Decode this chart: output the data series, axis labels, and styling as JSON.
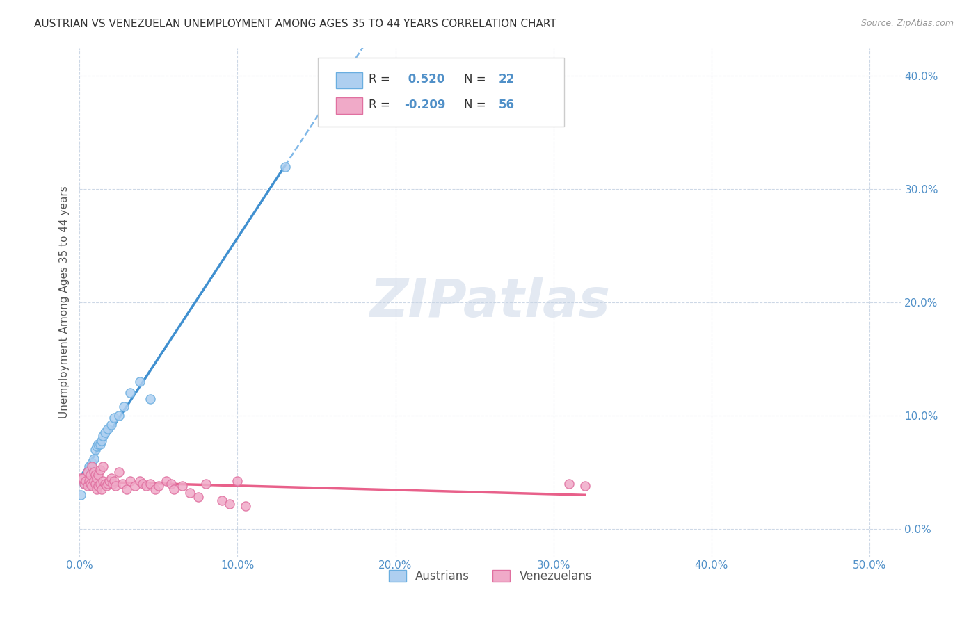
{
  "title": "AUSTRIAN VS VENEZUELAN UNEMPLOYMENT AMONG AGES 35 TO 44 YEARS CORRELATION CHART",
  "source": "Source: ZipAtlas.com",
  "ylabel": "Unemployment Among Ages 35 to 44 years",
  "xlim": [
    0.0,
    0.52
  ],
  "ylim": [
    -0.025,
    0.425
  ],
  "xticks": [
    0.0,
    0.1,
    0.2,
    0.3,
    0.4,
    0.5
  ],
  "yticks": [
    0.0,
    0.1,
    0.2,
    0.3,
    0.4
  ],
  "austrians_R": 0.52,
  "austrians_N": 22,
  "venezuelans_R": -0.209,
  "venezuelans_N": 56,
  "austrians_color": "#aecff0",
  "australians_edge_color": "#6aaee0",
  "venezuelans_color": "#f0aac8",
  "venezuelans_edge_color": "#e070a0",
  "austrians_line_color": "#4090d0",
  "venezuelans_line_color": "#e8608a",
  "dashed_line_color": "#80b8e8",
  "background_color": "#ffffff",
  "grid_color": "#c8d4e4",
  "watermark_color": "#ccd8e8",
  "austrians_x": [
    0.001,
    0.003,
    0.005,
    0.006,
    0.008,
    0.009,
    0.01,
    0.011,
    0.012,
    0.013,
    0.014,
    0.015,
    0.016,
    0.018,
    0.02,
    0.022,
    0.025,
    0.028,
    0.032,
    0.038,
    0.045,
    0.13
  ],
  "austrians_y": [
    0.03,
    0.04,
    0.05,
    0.055,
    0.058,
    0.062,
    0.07,
    0.073,
    0.075,
    0.075,
    0.078,
    0.082,
    0.085,
    0.088,
    0.092,
    0.098,
    0.1,
    0.108,
    0.12,
    0.13,
    0.115,
    0.32
  ],
  "venezuelans_x": [
    0.001,
    0.002,
    0.003,
    0.004,
    0.005,
    0.005,
    0.006,
    0.007,
    0.007,
    0.008,
    0.008,
    0.009,
    0.009,
    0.01,
    0.01,
    0.011,
    0.011,
    0.012,
    0.012,
    0.013,
    0.013,
    0.014,
    0.015,
    0.015,
    0.016,
    0.017,
    0.018,
    0.019,
    0.02,
    0.021,
    0.022,
    0.023,
    0.025,
    0.027,
    0.03,
    0.032,
    0.035,
    0.038,
    0.04,
    0.042,
    0.045,
    0.048,
    0.05,
    0.055,
    0.058,
    0.06,
    0.065,
    0.07,
    0.075,
    0.08,
    0.09,
    0.095,
    0.1,
    0.105,
    0.31,
    0.32
  ],
  "venezuelans_y": [
    0.045,
    0.045,
    0.04,
    0.042,
    0.038,
    0.05,
    0.042,
    0.04,
    0.048,
    0.038,
    0.055,
    0.042,
    0.05,
    0.04,
    0.048,
    0.035,
    0.045,
    0.038,
    0.048,
    0.04,
    0.052,
    0.035,
    0.042,
    0.055,
    0.04,
    0.038,
    0.04,
    0.042,
    0.045,
    0.04,
    0.042,
    0.038,
    0.05,
    0.04,
    0.035,
    0.042,
    0.038,
    0.042,
    0.04,
    0.038,
    0.04,
    0.035,
    0.038,
    0.042,
    0.04,
    0.035,
    0.038,
    0.032,
    0.028,
    0.04,
    0.025,
    0.022,
    0.042,
    0.02,
    0.04,
    0.038
  ]
}
